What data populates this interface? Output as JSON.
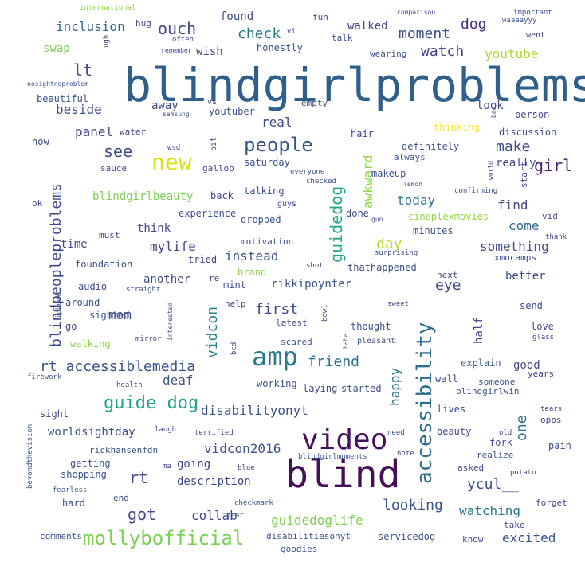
{
  "words": [
    {
      "text": "blindgirlproblems",
      "color": "#2f5f8a"
    },
    {
      "text": "blind",
      "color": "#440f54"
    },
    {
      "text": "video",
      "color": "#45115e"
    },
    {
      "text": "amp",
      "color": "#2a7a8e"
    },
    {
      "text": "accessibility",
      "color": "#2c6e8e"
    },
    {
      "text": "new",
      "color": "#d8e21a"
    },
    {
      "text": "people",
      "color": "#35568a"
    },
    {
      "text": "guide dog",
      "color": "#21a685"
    },
    {
      "text": "mollybofficial",
      "color": "#7ad151"
    },
    {
      "text": "blindpeopleproblems",
      "color": "#3a4a8c"
    },
    {
      "text": "guidedog",
      "color": "#22a884"
    },
    {
      "text": "vidcon",
      "color": "#277f8e"
    },
    {
      "text": "rt accessiblemedia",
      "color": "#3b528b"
    },
    {
      "text": "awkward",
      "color": "#8fd744"
    },
    {
      "text": "lt",
      "color": "#3e4a89"
    },
    {
      "text": "see",
      "color": "#3e4a89"
    },
    {
      "text": "girl",
      "color": "#482475"
    },
    {
      "text": "moment",
      "color": "#3b528b"
    },
    {
      "text": "watch",
      "color": "#414487"
    },
    {
      "text": "youtube",
      "color": "#a8db34"
    },
    {
      "text": "make",
      "color": "#3e4a89"
    },
    {
      "text": "ouch",
      "color": "#3e4a89"
    },
    {
      "text": "check",
      "color": "#2a788e"
    },
    {
      "text": "dog",
      "color": "#472d7b"
    },
    {
      "text": "inclusion",
      "color": "#31688e"
    },
    {
      "text": "beside",
      "color": "#3b528b"
    },
    {
      "text": "panel",
      "color": "#3e4a89"
    },
    {
      "text": "real",
      "color": "#3e4a89"
    },
    {
      "text": "today",
      "color": "#2c728e"
    },
    {
      "text": "find",
      "color": "#3e4a89"
    },
    {
      "text": "day",
      "color": "#b5de2b"
    },
    {
      "text": "come",
      "color": "#31688e"
    },
    {
      "text": "something",
      "color": "#3e4a89"
    },
    {
      "text": "mylife",
      "color": "#3e4a89"
    },
    {
      "text": "instead",
      "color": "#3b528b"
    },
    {
      "text": "eye",
      "color": "#3e4a89"
    },
    {
      "text": "first",
      "color": "#3e4a89"
    },
    {
      "text": "friend",
      "color": "#2c728e"
    },
    {
      "text": "mom",
      "color": "#3e4a89"
    },
    {
      "text": "deaf",
      "color": "#3b528b"
    },
    {
      "text": "disabilityonyt",
      "color": "#3b528b"
    },
    {
      "text": "worldsightday",
      "color": "#3b528b"
    },
    {
      "text": "vidcon2016",
      "color": "#3b528b"
    },
    {
      "text": "rt",
      "color": "#3e4a89"
    },
    {
      "text": "got",
      "color": "#3e4a89"
    },
    {
      "text": "collab",
      "color": "#3e4a89"
    },
    {
      "text": "description",
      "color": "#3e4a89"
    },
    {
      "text": "looking",
      "color": "#3b528b"
    },
    {
      "text": "guidedoglife",
      "color": "#7ad151"
    },
    {
      "text": "excited",
      "color": "#3b528b"
    },
    {
      "text": "watching",
      "color": "#2a788e"
    },
    {
      "text": "ycul__",
      "color": "#3b528b"
    },
    {
      "text": "one",
      "color": "#2c728e"
    },
    {
      "text": "happy",
      "color": "#2c728e"
    },
    {
      "text": "half",
      "color": "#3e4a89"
    },
    {
      "text": "rikkipoynter",
      "color": "#3b528b"
    },
    {
      "text": "think",
      "color": "#3e4a89"
    },
    {
      "text": "time",
      "color": "#3e4a89"
    },
    {
      "text": "blindgirlbeauty",
      "color": "#7ad151"
    },
    {
      "text": "saturday",
      "color": "#3b528b"
    },
    {
      "text": "found",
      "color": "#3e4a89"
    },
    {
      "text": "walked",
      "color": "#3e4a89"
    },
    {
      "text": "honestly",
      "color": "#3b528b"
    },
    {
      "text": "swap",
      "color": "#7ad151"
    },
    {
      "text": "wish",
      "color": "#3e4a89"
    },
    {
      "text": "beautiful",
      "color": "#3b528b"
    },
    {
      "text": "away",
      "color": "#3e4a89"
    },
    {
      "text": "youtuber",
      "color": "#3b528b"
    },
    {
      "text": "now",
      "color": "#3e4a89"
    },
    {
      "text": "look",
      "color": "#3e4a89"
    },
    {
      "text": "person",
      "color": "#3e4a89"
    },
    {
      "text": "discussion",
      "color": "#3b528b"
    },
    {
      "text": "thinking",
      "color": "#fde725"
    },
    {
      "text": "definitely",
      "color": "#3b528b"
    },
    {
      "text": "always",
      "color": "#3b528b"
    },
    {
      "text": "really",
      "color": "#3e4a89"
    },
    {
      "text": "start",
      "color": "#3e4a89"
    },
    {
      "text": "hair",
      "color": "#3e4a89"
    },
    {
      "text": "makeup",
      "color": "#3b528b"
    },
    {
      "text": "experience",
      "color": "#3b528b"
    },
    {
      "text": "back",
      "color": "#3e4a89"
    },
    {
      "text": "talking",
      "color": "#3b528b"
    },
    {
      "text": "dropped",
      "color": "#3b528b"
    },
    {
      "text": "done",
      "color": "#3e4a89"
    },
    {
      "text": "cineplexmovies",
      "color": "#8fd744"
    },
    {
      "text": "minutes",
      "color": "#3b528b"
    },
    {
      "text": "vid",
      "color": "#3e4a89"
    },
    {
      "text": "must",
      "color": "#3e4a89"
    },
    {
      "text": "motivation",
      "color": "#3b528b"
    },
    {
      "text": "tried",
      "color": "#3e4a89"
    },
    {
      "text": "foundation",
      "color": "#3b528b"
    },
    {
      "text": "brand",
      "color": "#8fd744"
    },
    {
      "text": "thathappened",
      "color": "#3b528b"
    },
    {
      "text": "next",
      "color": "#3e4a89"
    },
    {
      "text": "xmocamps",
      "color": "#3b528b"
    },
    {
      "text": "better",
      "color": "#3e4a89"
    },
    {
      "text": "another",
      "color": "#3e4a89"
    },
    {
      "text": "audio",
      "color": "#3e4a89"
    },
    {
      "text": "mint",
      "color": "#3e4a89"
    },
    {
      "text": "around",
      "color": "#3b528b"
    },
    {
      "text": "sighted",
      "color": "#3b528b"
    },
    {
      "text": "walking",
      "color": "#8fd744"
    },
    {
      "text": "go",
      "color": "#3e4a89"
    },
    {
      "text": "help",
      "color": "#3e4a89"
    },
    {
      "text": "latest",
      "color": "#3b528b"
    },
    {
      "text": "scared",
      "color": "#3b528b"
    },
    {
      "text": "thought",
      "color": "#3b528b"
    },
    {
      "text": "pleasant",
      "color": "#3b528b"
    },
    {
      "text": "send",
      "color": "#3e4a89"
    },
    {
      "text": "love",
      "color": "#3e4a89"
    },
    {
      "text": "good",
      "color": "#3e4a89"
    },
    {
      "text": "explain",
      "color": "#3b528b"
    },
    {
      "text": "years",
      "color": "#3e4a89"
    },
    {
      "text": "someone",
      "color": "#3b528b"
    },
    {
      "text": "blindgirlwin",
      "color": "#3b528b"
    },
    {
      "text": "wall",
      "color": "#3e4a89"
    },
    {
      "text": "working",
      "color": "#3b528b"
    },
    {
      "text": "laying",
      "color": "#3e4a89"
    },
    {
      "text": "started",
      "color": "#3b528b"
    },
    {
      "text": "lives",
      "color": "#3e4a89"
    },
    {
      "text": "opps",
      "color": "#3e4a89"
    },
    {
      "text": "beauty",
      "color": "#3e4a89"
    },
    {
      "text": "pain",
      "color": "#3e4a89"
    },
    {
      "text": "fork",
      "color": "#3e4a89"
    },
    {
      "text": "realize",
      "color": "#3b528b"
    },
    {
      "text": "asked",
      "color": "#3e4a89"
    },
    {
      "text": "going",
      "color": "#3e4a89"
    },
    {
      "text": "rickhansenfdn",
      "color": "#3b528b"
    },
    {
      "text": "getting",
      "color": "#3b528b"
    },
    {
      "text": "shopping",
      "color": "#3b528b"
    },
    {
      "text": "hard",
      "color": "#3e4a89"
    },
    {
      "text": "comments",
      "color": "#3b528b"
    },
    {
      "text": "end",
      "color": "#3e4a89"
    },
    {
      "text": "servicedog",
      "color": "#3b528b"
    },
    {
      "text": "disabilitiesonyt",
      "color": "#3b528b"
    },
    {
      "text": "goodies",
      "color": "#3b528b"
    },
    {
      "text": "know",
      "color": "#3e4a89"
    },
    {
      "text": "take",
      "color": "#3e4a89"
    },
    {
      "text": "forget",
      "color": "#3e4a89"
    },
    {
      "text": "sight",
      "color": "#3e4a89"
    },
    {
      "text": "international",
      "color": "#8fd744"
    },
    {
      "text": "fun",
      "color": "#3e4a89"
    },
    {
      "text": "hug",
      "color": "#3e4a89"
    },
    {
      "text": "often",
      "color": "#3e4a89"
    },
    {
      "text": "remember",
      "color": "#3b528b"
    },
    {
      "text": "talk",
      "color": "#3e4a89"
    },
    {
      "text": "wearing",
      "color": "#3b528b"
    },
    {
      "text": "important",
      "color": "#3b528b"
    },
    {
      "text": "waaaayyy",
      "color": "#3b528b"
    },
    {
      "text": "went",
      "color": "#3e4a89"
    },
    {
      "text": "comparison",
      "color": "#3b528b"
    },
    {
      "text": "nosightnoproblem",
      "color": "#3b528b"
    },
    {
      "text": "samsung",
      "color": "#3b528b"
    },
    {
      "text": "vs",
      "color": "#3e4a89"
    },
    {
      "text": "empty",
      "color": "#3e4a89"
    },
    {
      "text": "water",
      "color": "#3e4a89"
    },
    {
      "text": "bit",
      "color": "#3e4a89"
    },
    {
      "text": "wsd",
      "color": "#3e4a89"
    },
    {
      "text": "sauce",
      "color": "#3e4a89"
    },
    {
      "text": "gallop",
      "color": "#3e4a89"
    },
    {
      "text": "everyone",
      "color": "#3b528b"
    },
    {
      "text": "checked",
      "color": "#3b528b"
    },
    {
      "text": "lemon",
      "color": "#3e4a89"
    },
    {
      "text": "confirming",
      "color": "#3b528b"
    },
    {
      "text": "guys",
      "color": "#3e4a89"
    },
    {
      "text": "gun",
      "color": "#3e4a89"
    },
    {
      "text": "ok",
      "color": "#3e4a89"
    },
    {
      "text": "thank",
      "color": "#3e4a89"
    },
    {
      "text": "shot",
      "color": "#3e4a89"
    },
    {
      "text": "surprising",
      "color": "#3b528b"
    },
    {
      "text": "straight",
      "color": "#3b528b"
    },
    {
      "text": "re",
      "color": "#3e4a89"
    },
    {
      "text": "interested",
      "color": "#3b528b"
    },
    {
      "text": "bowl",
      "color": "#3e4a89"
    },
    {
      "text": "sweet",
      "color": "#3e4a89"
    },
    {
      "text": "haha",
      "color": "#3e4a89"
    },
    {
      "text": "glass",
      "color": "#3e4a89"
    },
    {
      "text": "mirror",
      "color": "#3e4a89"
    },
    {
      "text": "bcd",
      "color": "#3e4a89"
    },
    {
      "text": "firework",
      "color": "#3b528b"
    },
    {
      "text": "health",
      "color": "#3e4a89"
    },
    {
      "text": "laugh",
      "color": "#3e4a89"
    },
    {
      "text": "terrified",
      "color": "#3b528b"
    },
    {
      "text": "need",
      "color": "#3e4a89"
    },
    {
      "text": "tears",
      "color": "#3e4a89"
    },
    {
      "text": "old",
      "color": "#3e4a89"
    },
    {
      "text": "note",
      "color": "#3e4a89"
    },
    {
      "text": "potato",
      "color": "#3e4a89"
    },
    {
      "text": "beyondthevision",
      "color": "#3b528b"
    },
    {
      "text": "fearless",
      "color": "#3b528b"
    },
    {
      "text": "checkmark",
      "color": "#3b528b"
    },
    {
      "text": "near",
      "color": "#3e4a89"
    },
    {
      "text": "blindgirlmoments",
      "color": "#3b528b"
    },
    {
      "text": "blue",
      "color": "#3e4a89"
    },
    {
      "text": "ma",
      "color": "#3e4a89"
    },
    {
      "text": "vi",
      "color": "#3e4a89"
    },
    {
      "text": "ugh",
      "color": "#3e4a89"
    },
    {
      "text": "iphone",
      "color": "#3e4a89"
    },
    {
      "text": "bad",
      "color": "#3e4a89"
    },
    {
      "text": "world",
      "color": "#3e4a89"
    }
  ]
}
